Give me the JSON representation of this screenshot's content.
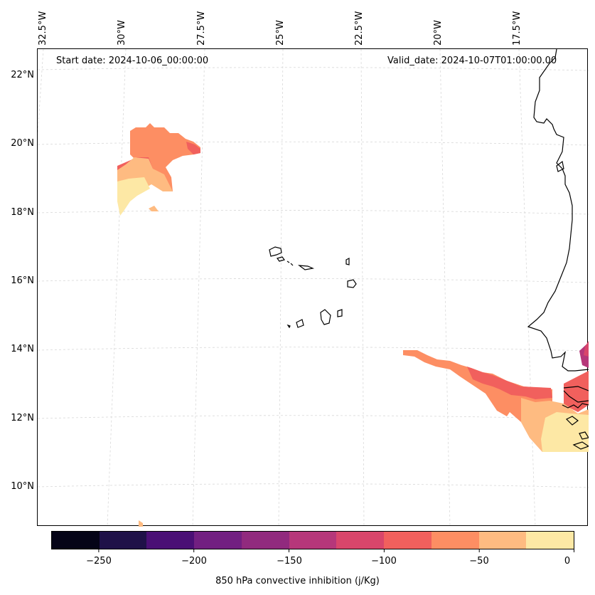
{
  "map": {
    "start_date": "Start date: 2024-10-06_00:00:00",
    "valid_date": "Valid_date: 2024-10-07T01:00:00.00",
    "lat_labels": [
      "22°N",
      "20°N",
      "18°N",
      "16°N",
      "14°N",
      "12°N",
      "10°N"
    ],
    "lon_labels": [
      "32.5°W",
      "30°W",
      "27.5°W",
      "25°W",
      "22.5°W",
      "20°W",
      "17.5°W"
    ],
    "features": {
      "islands": "Cabo Verde islands",
      "coastline": "West African coast"
    }
  },
  "colorbar": {
    "label": "850 hPa convective inhibition (j/Kg)",
    "tick_labels": [
      "−250",
      "−200",
      "−150",
      "−100",
      "−50",
      "0"
    ],
    "tick_values": [
      -250,
      -200,
      -150,
      -100,
      -50,
      0
    ],
    "range": [
      -275,
      0
    ],
    "step": 25,
    "colors": [
      "#050417",
      "#1f1148",
      "#4a0f75",
      "#721f81",
      "#912a7e",
      "#b6377a",
      "#d9466b",
      "#f1605d",
      "#fd8e63",
      "#febb81",
      "#fde8a5"
    ]
  }
}
